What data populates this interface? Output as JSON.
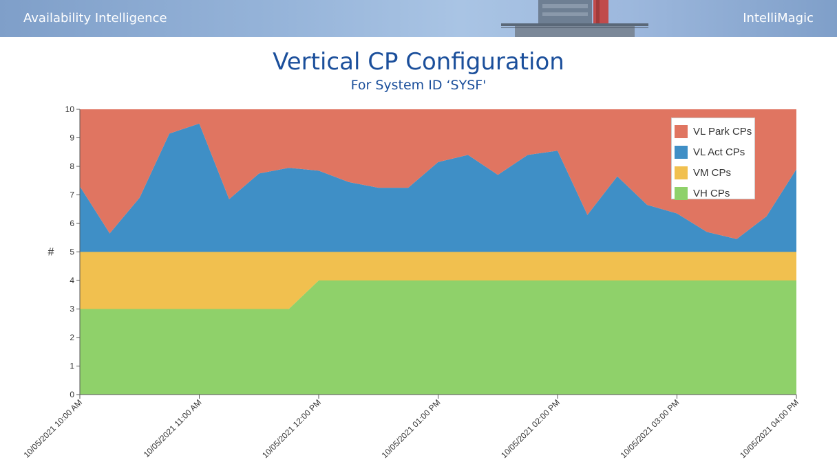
{
  "header": {
    "app_title": "Availability Intelligence",
    "brand": "IntelliMagic"
  },
  "page": {
    "title": "Vertical CP Configuration",
    "subtitle": "For System ID ‘SYSF'"
  },
  "chart_data": {
    "type": "area",
    "stacked": true,
    "ylabel": "#",
    "ylim": [
      0,
      10
    ],
    "y_ticks": [
      0,
      1,
      2,
      3,
      4,
      5,
      6,
      7,
      8,
      9,
      10
    ],
    "xlim": [
      "10/05/2021 10:00 AM",
      "10/05/2021 04:00 PM"
    ],
    "x_tick_labels": [
      "10/05/2021 10:00 AM",
      "10/05/2021 11:00 AM",
      "10/05/2021 12:00 PM",
      "10/05/2021 01:00 PM",
      "10/05/2021 02:00 PM",
      "10/05/2021 03:00 PM",
      "10/05/2021 04:00 PM"
    ],
    "x": [
      "10:00 AM",
      "10:15 AM",
      "10:30 AM",
      "10:45 AM",
      "11:00 AM",
      "11:15 AM",
      "11:30 AM",
      "11:45 AM",
      "12:00 PM",
      "12:15 PM",
      "12:30 PM",
      "12:45 PM",
      "01:00 PM",
      "01:15 PM",
      "01:30 PM",
      "01:45 PM",
      "02:00 PM",
      "02:15 PM",
      "02:30 PM",
      "02:45 PM",
      "03:00 PM",
      "03:15 PM",
      "03:30 PM",
      "03:45 PM",
      "04:00 PM"
    ],
    "series": [
      {
        "name": "VH CPs",
        "color": "#8fd16a",
        "values": [
          3,
          3,
          3,
          3,
          3,
          3,
          3,
          3,
          4,
          4,
          4,
          4,
          4,
          4,
          4,
          4,
          4,
          4,
          4,
          4,
          4,
          4,
          4,
          4,
          4
        ]
      },
      {
        "name": "VM CPs",
        "color": "#f1c04f",
        "values": [
          2,
          2,
          2,
          2,
          2,
          2,
          2,
          2,
          1,
          1,
          1,
          1,
          1,
          1,
          1,
          1,
          1,
          1,
          1,
          1,
          1,
          1,
          1,
          1,
          1
        ]
      },
      {
        "name": "VL Act CPs",
        "color": "#3f8fc6",
        "values": [
          2.3,
          0.65,
          1.9,
          4.15,
          4.5,
          1.85,
          2.75,
          2.95,
          2.85,
          2.45,
          2.25,
          2.25,
          3.15,
          3.4,
          2.7,
          3.4,
          3.55,
          1.3,
          2.65,
          1.65,
          1.35,
          0.7,
          0.45,
          1.25,
          2.9
        ]
      },
      {
        "name": "VL Park CPs",
        "color": "#e07561",
        "values": [
          2.7,
          4.35,
          3.1,
          0.85,
          0.5,
          3.15,
          2.25,
          2.05,
          2.15,
          2.55,
          2.75,
          2.75,
          1.85,
          1.6,
          2.3,
          1.6,
          1.45,
          3.7,
          2.35,
          3.35,
          3.65,
          4.3,
          4.55,
          3.75,
          2.1
        ]
      }
    ],
    "legend": {
      "position": "top-right",
      "order": [
        "VL Park CPs",
        "VL Act CPs",
        "VM CPs",
        "VH CPs"
      ]
    },
    "grid": false
  }
}
